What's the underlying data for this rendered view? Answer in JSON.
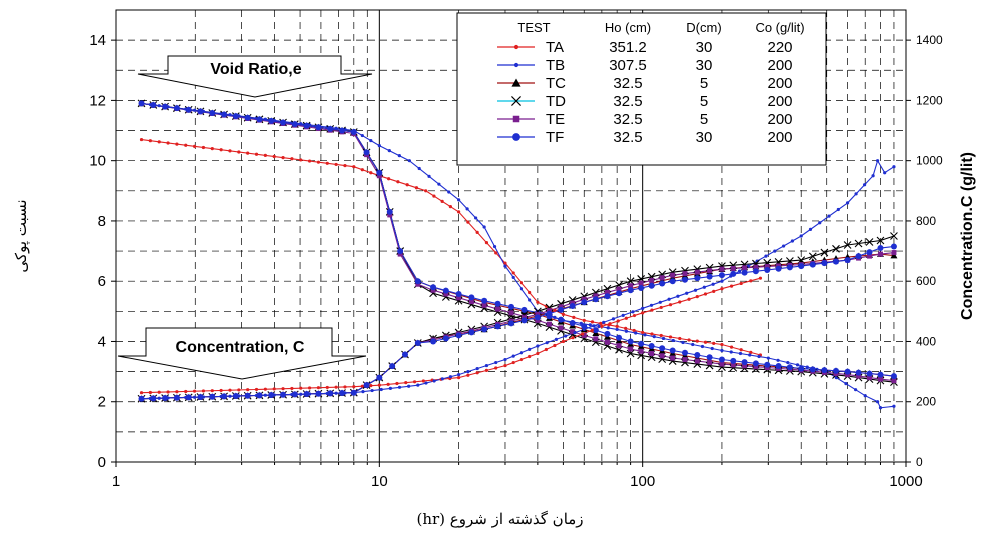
{
  "chart_data": {
    "type": "line",
    "xlabel": "زمان گذشته از شروع (hr)",
    "ylabel": "نسبت پوکی",
    "y2label": "Concentration.C (g/lit)",
    "x_scale": "log",
    "xlim": [
      1,
      1000
    ],
    "ylim": [
      0,
      15
    ],
    "y2lim": [
      0,
      1500
    ],
    "x_ticks": [
      "1",
      "10",
      "100",
      "1000"
    ],
    "y_ticks": [
      "0",
      "2",
      "4",
      "6",
      "8",
      "10",
      "12",
      "14"
    ],
    "y2_ticks": [
      "0",
      "200",
      "400",
      "600",
      "800",
      "1000",
      "1200",
      "1400"
    ],
    "grid": true,
    "legend_position": "top-right",
    "legend_headers": [
      "TEST",
      "Ho (cm)",
      "D(cm)",
      "Co (g/lit)"
    ],
    "legend": [
      {
        "name": "TA",
        "ho": "351.2",
        "d": "30",
        "co": "220",
        "color": "#e02020",
        "marker": "dot"
      },
      {
        "name": "TB",
        "ho": "307.5",
        "d": "30",
        "co": "200",
        "color": "#1f2fd0",
        "marker": "dot"
      },
      {
        "name": "TC",
        "ho": "32.5",
        "d": "5",
        "co": "200",
        "color": "#a01010",
        "marker": "triangle"
      },
      {
        "name": "TD",
        "ho": "32.5",
        "d": "5",
        "co": "200",
        "color": "#000000",
        "marker": "x",
        "line_color": "#00c0e0"
      },
      {
        "name": "TE",
        "ho": "32.5",
        "d": "5",
        "co": "200",
        "color": "#7a1f8f",
        "marker": "square"
      },
      {
        "name": "TF",
        "ho": "32.5",
        "d": "30",
        "co": "200",
        "color": "#1f2fd0",
        "marker": "bigdot"
      }
    ],
    "annotations": [
      "Void Ratio,e",
      "Concentration, C"
    ],
    "series": [
      {
        "name": "TA",
        "group": "void",
        "points": [
          [
            1.25,
            10.7
          ],
          [
            8,
            9.8
          ],
          [
            10,
            9.5
          ],
          [
            15,
            9.0
          ],
          [
            20,
            8.3
          ],
          [
            30,
            6.6
          ],
          [
            40,
            5.3
          ],
          [
            50,
            4.9
          ],
          [
            60,
            4.7
          ],
          [
            80,
            4.5
          ],
          [
            100,
            4.3
          ],
          [
            150,
            4.05
          ],
          [
            200,
            3.9
          ],
          [
            280,
            3.55
          ]
        ]
      },
      {
        "name": "TB",
        "group": "void",
        "points": [
          [
            1.25,
            11.9
          ],
          [
            8,
            11.0
          ],
          [
            10,
            10.5
          ],
          [
            13,
            10.0
          ],
          [
            20,
            8.7
          ],
          [
            25,
            7.8
          ],
          [
            30,
            6.5
          ],
          [
            40,
            5.0
          ],
          [
            50,
            4.7
          ],
          [
            80,
            4.4
          ],
          [
            120,
            4.1
          ],
          [
            200,
            3.7
          ],
          [
            300,
            3.45
          ],
          [
            500,
            3.0
          ],
          [
            700,
            2.2
          ],
          [
            780,
            2.0
          ],
          [
            800,
            1.8
          ],
          [
            900,
            1.85
          ]
        ]
      },
      {
        "name": "TC",
        "group": "void",
        "points": [
          [
            1.25,
            11.9
          ],
          [
            8,
            10.95
          ],
          [
            10,
            9.6
          ],
          [
            12,
            7.0
          ],
          [
            14,
            6.0
          ],
          [
            16,
            5.8
          ],
          [
            25,
            5.3
          ],
          [
            40,
            4.9
          ],
          [
            60,
            4.4
          ],
          [
            90,
            3.9
          ],
          [
            130,
            3.6
          ],
          [
            200,
            3.3
          ],
          [
            400,
            3.1
          ],
          [
            600,
            3.0
          ],
          [
            800,
            2.9
          ],
          [
            900,
            2.85
          ]
        ]
      },
      {
        "name": "TD",
        "group": "void",
        "points": [
          [
            1.25,
            11.9
          ],
          [
            8,
            10.95
          ],
          [
            10,
            9.6
          ],
          [
            12,
            7.0
          ],
          [
            14,
            5.9
          ],
          [
            16,
            5.6
          ],
          [
            25,
            5.1
          ],
          [
            40,
            4.6
          ],
          [
            60,
            4.1
          ],
          [
            90,
            3.6
          ],
          [
            130,
            3.35
          ],
          [
            200,
            3.15
          ],
          [
            400,
            3.0
          ],
          [
            600,
            2.85
          ],
          [
            800,
            2.7
          ],
          [
            900,
            2.65
          ]
        ]
      },
      {
        "name": "TE",
        "group": "void",
        "points": [
          [
            1.25,
            11.9
          ],
          [
            8,
            10.9
          ],
          [
            10,
            9.5
          ],
          [
            12,
            6.9
          ],
          [
            14,
            5.9
          ],
          [
            16,
            5.7
          ],
          [
            25,
            5.2
          ],
          [
            40,
            4.7
          ],
          [
            60,
            4.2
          ],
          [
            90,
            3.75
          ],
          [
            130,
            3.45
          ],
          [
            200,
            3.25
          ],
          [
            400,
            3.05
          ],
          [
            600,
            2.9
          ],
          [
            800,
            2.75
          ],
          [
            900,
            2.7
          ]
        ]
      },
      {
        "name": "TF",
        "group": "void",
        "points": [
          [
            1.25,
            11.9
          ],
          [
            8,
            10.95
          ],
          [
            10,
            9.6
          ],
          [
            12,
            7.0
          ],
          [
            14,
            6.0
          ],
          [
            16,
            5.8
          ],
          [
            25,
            5.35
          ],
          [
            40,
            4.95
          ],
          [
            60,
            4.5
          ],
          [
            90,
            4.0
          ],
          [
            130,
            3.7
          ],
          [
            200,
            3.4
          ],
          [
            400,
            3.1
          ],
          [
            600,
            3.0
          ],
          [
            800,
            2.9
          ],
          [
            900,
            2.85
          ]
        ]
      },
      {
        "name": "TA",
        "group": "concentration",
        "points": [
          [
            1.25,
            2.3
          ],
          [
            8,
            2.5
          ],
          [
            10,
            2.55
          ],
          [
            20,
            2.8
          ],
          [
            30,
            3.2
          ],
          [
            40,
            3.6
          ],
          [
            50,
            4.0
          ],
          [
            70,
            4.5
          ],
          [
            100,
            4.95
          ],
          [
            150,
            5.4
          ],
          [
            200,
            5.75
          ],
          [
            280,
            6.1
          ]
        ]
      },
      {
        "name": "TB",
        "group": "concentration",
        "points": [
          [
            1.25,
            2.1
          ],
          [
            8,
            2.3
          ],
          [
            14,
            2.55
          ],
          [
            20,
            2.9
          ],
          [
            30,
            3.4
          ],
          [
            40,
            3.85
          ],
          [
            60,
            4.4
          ],
          [
            100,
            5.1
          ],
          [
            200,
            6.0
          ],
          [
            400,
            7.5
          ],
          [
            600,
            8.6
          ],
          [
            750,
            9.5
          ],
          [
            780,
            10.0
          ],
          [
            830,
            9.6
          ],
          [
            900,
            9.8
          ]
        ]
      },
      {
        "name": "TC",
        "group": "concentration",
        "points": [
          [
            1.25,
            2.1
          ],
          [
            8,
            2.3
          ],
          [
            10,
            2.8
          ],
          [
            14,
            3.95
          ],
          [
            16,
            4.1
          ],
          [
            25,
            4.4
          ],
          [
            40,
            4.85
          ],
          [
            60,
            5.3
          ],
          [
            90,
            5.75
          ],
          [
            130,
            6.1
          ],
          [
            200,
            6.4
          ],
          [
            400,
            6.6
          ],
          [
            600,
            6.8
          ],
          [
            800,
            6.9
          ],
          [
            900,
            6.85
          ]
        ]
      },
      {
        "name": "TD",
        "group": "concentration",
        "points": [
          [
            1.25,
            2.1
          ],
          [
            8,
            2.3
          ],
          [
            10,
            2.8
          ],
          [
            14,
            3.95
          ],
          [
            16,
            4.1
          ],
          [
            25,
            4.5
          ],
          [
            40,
            5.0
          ],
          [
            60,
            5.5
          ],
          [
            90,
            6.0
          ],
          [
            130,
            6.3
          ],
          [
            200,
            6.5
          ],
          [
            400,
            6.7
          ],
          [
            600,
            7.2
          ],
          [
            800,
            7.35
          ],
          [
            900,
            7.5
          ]
        ]
      },
      {
        "name": "TE",
        "group": "concentration",
        "points": [
          [
            1.25,
            2.1
          ],
          [
            8,
            2.3
          ],
          [
            10,
            2.8
          ],
          [
            14,
            3.95
          ],
          [
            16,
            4.05
          ],
          [
            25,
            4.45
          ],
          [
            40,
            4.9
          ],
          [
            60,
            5.4
          ],
          [
            90,
            5.85
          ],
          [
            130,
            6.2
          ],
          [
            200,
            6.4
          ],
          [
            400,
            6.55
          ],
          [
            600,
            6.7
          ],
          [
            800,
            6.9
          ],
          [
            900,
            6.95
          ]
        ]
      },
      {
        "name": "TF",
        "group": "concentration",
        "points": [
          [
            1.25,
            2.1
          ],
          [
            8,
            2.3
          ],
          [
            10,
            2.8
          ],
          [
            14,
            3.95
          ],
          [
            16,
            4.0
          ],
          [
            25,
            4.4
          ],
          [
            40,
            4.8
          ],
          [
            60,
            5.3
          ],
          [
            90,
            5.7
          ],
          [
            130,
            6.0
          ],
          [
            200,
            6.2
          ],
          [
            400,
            6.5
          ],
          [
            600,
            6.7
          ],
          [
            800,
            7.1
          ],
          [
            900,
            7.15
          ]
        ]
      }
    ]
  }
}
